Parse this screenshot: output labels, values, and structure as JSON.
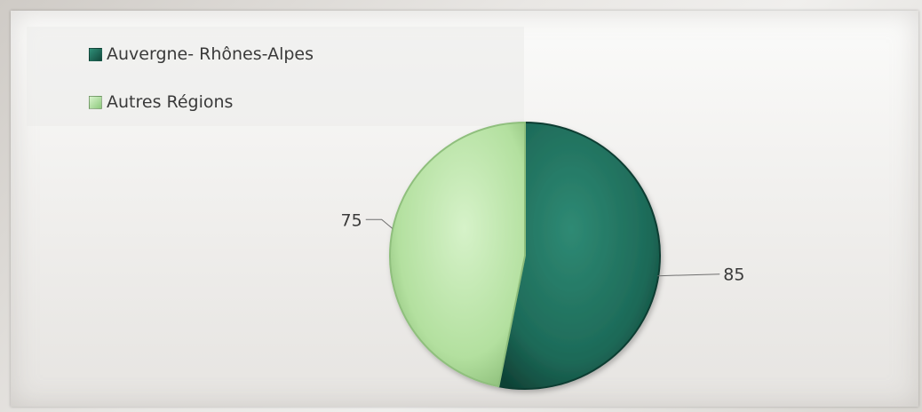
{
  "chart_data": {
    "type": "pie",
    "categories": [
      "Auvergne- Rhônes-Alpes",
      "Autres Régions"
    ],
    "values": [
      85,
      75
    ],
    "colors": [
      "#1f6f5e",
      "#b4e3a4"
    ],
    "data_labels": [
      "85",
      "75"
    ],
    "legend_position": "top-left",
    "title": ""
  }
}
